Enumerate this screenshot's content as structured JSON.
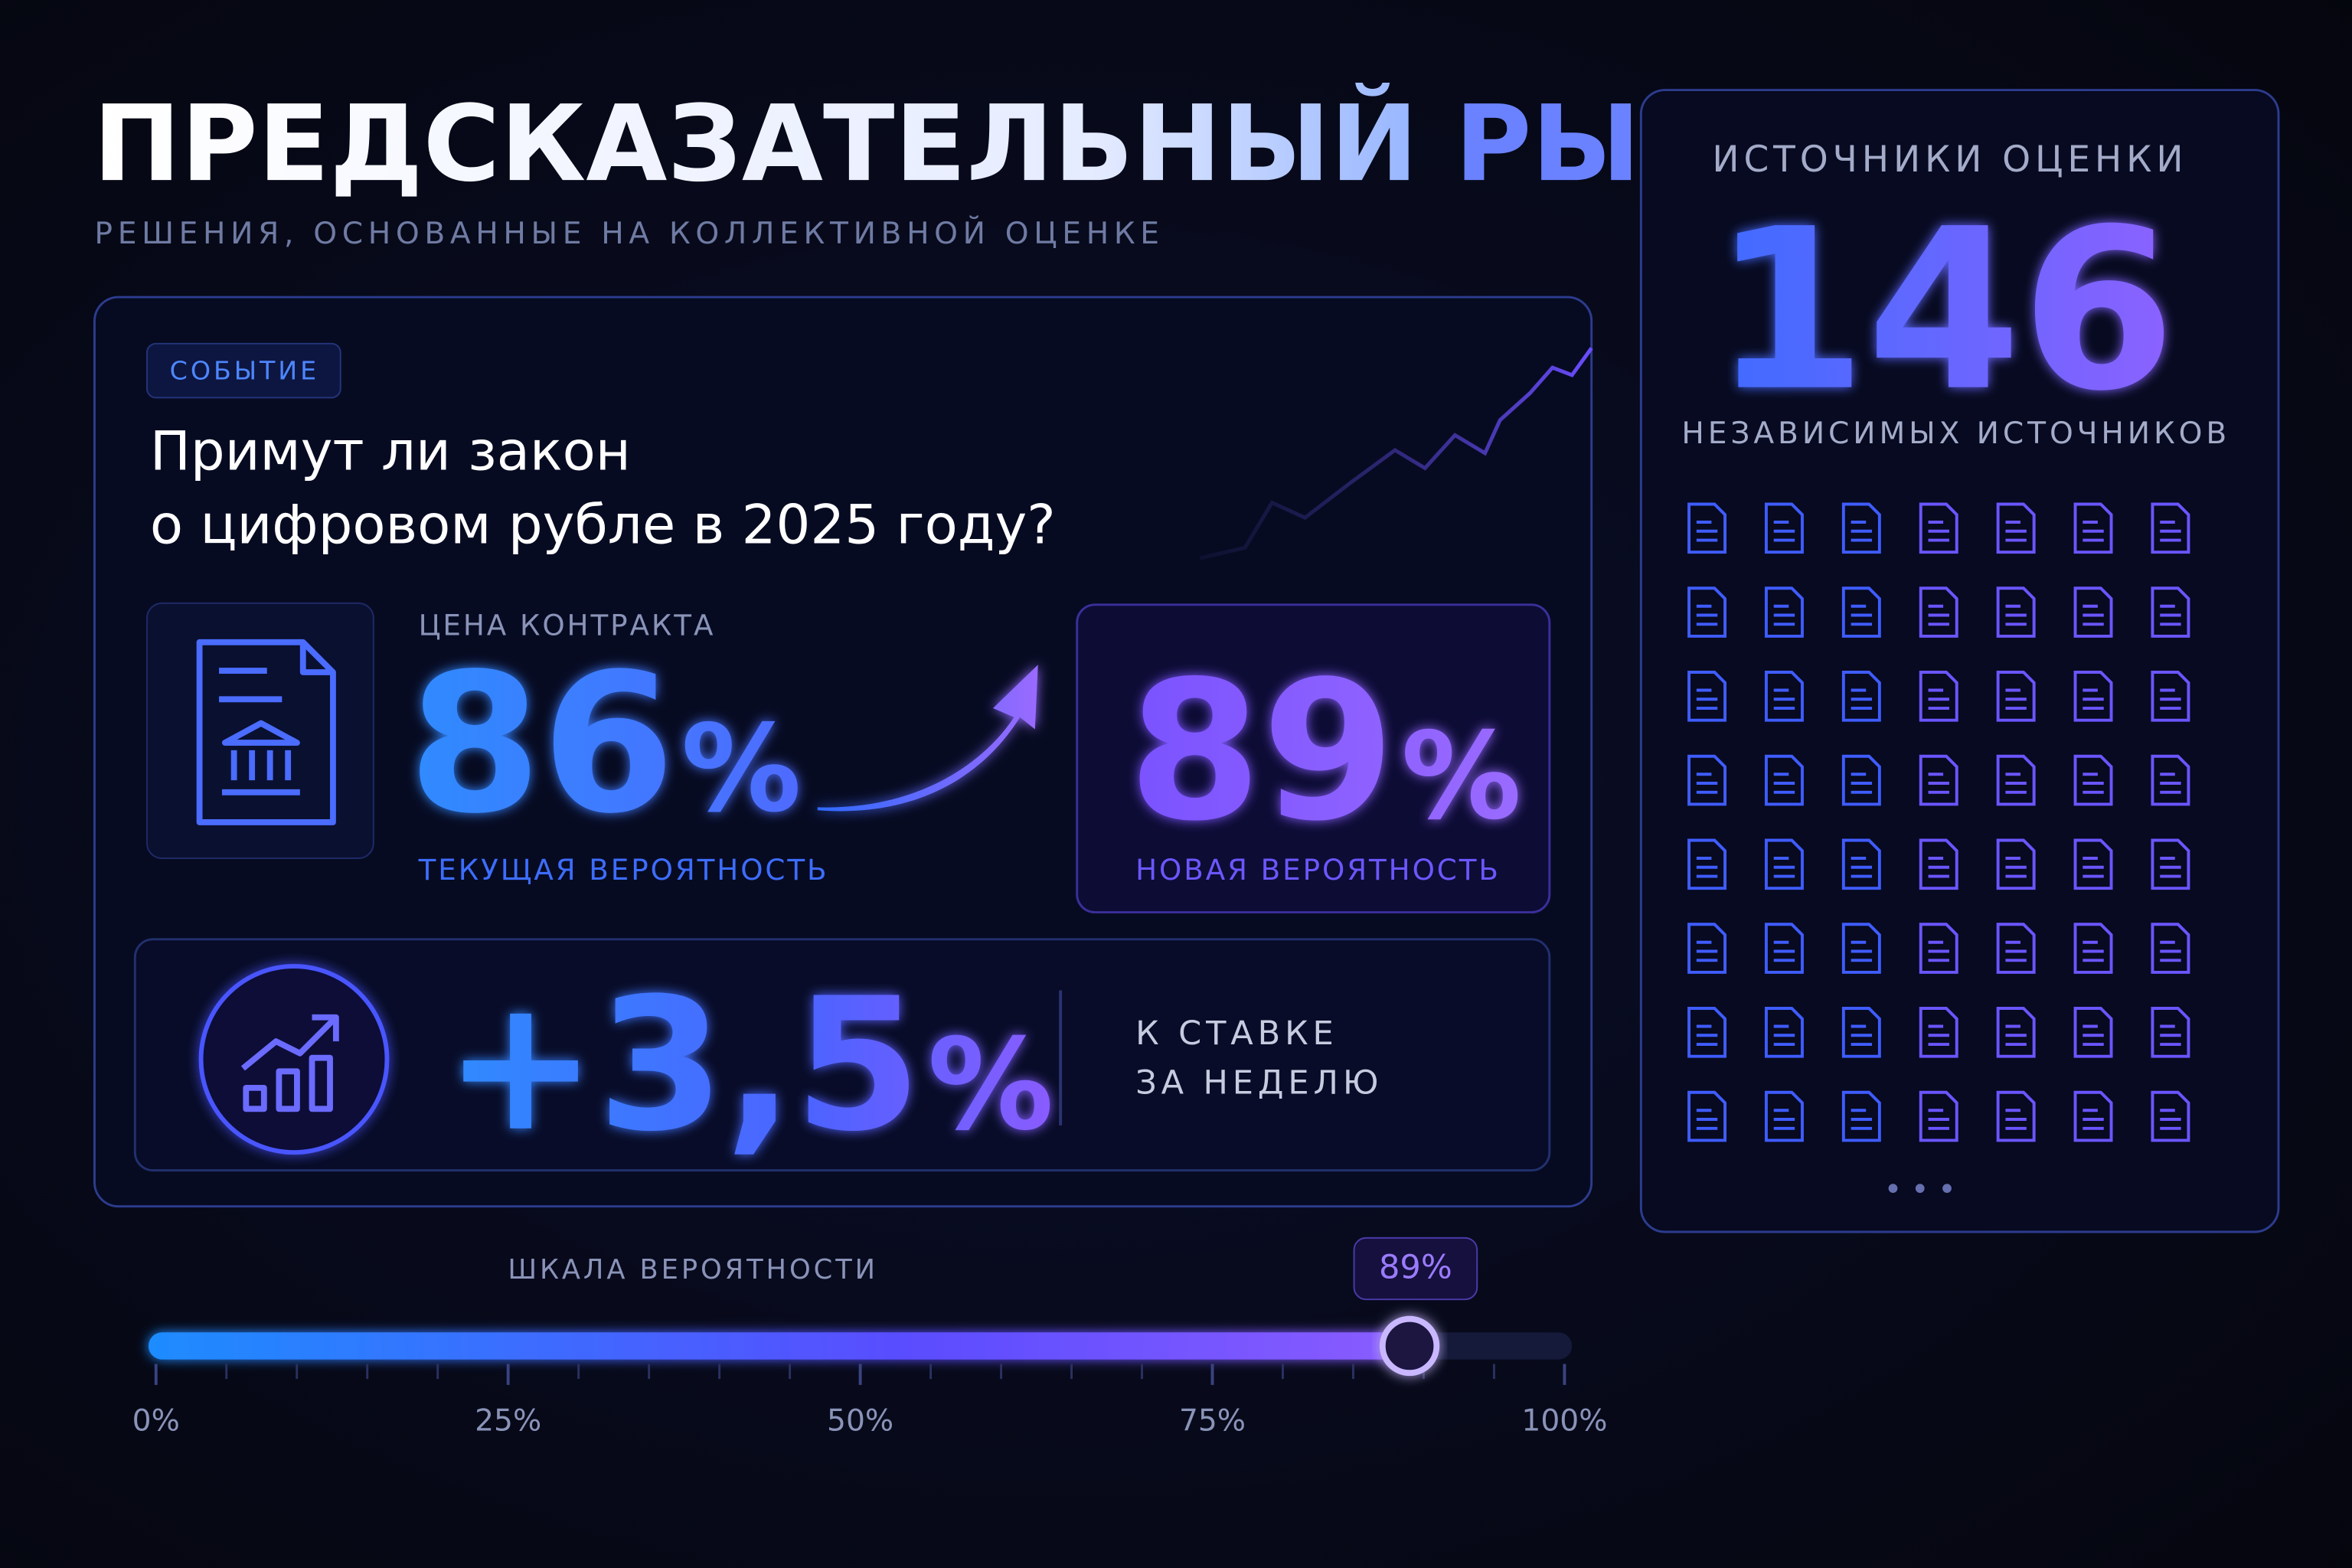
{
  "header": {
    "title_main": "ПРЕДСКАЗАТЕЛЬНЫЙ",
    "title_accent": "РЫНОК",
    "subtitle": "РЕШЕНИЯ, ОСНОВАННЫЕ НА КОЛЛЕКТИВНОЙ ОЦЕНКЕ"
  },
  "event": {
    "badge": "СОБЫТИЕ",
    "question": [
      "Примут ли закон",
      "о цифровом рубле в 2025 году?"
    ],
    "price_label": "ЦЕНА КОНТРАКТА",
    "current": {
      "value": "86",
      "unit": "%",
      "label": "ТЕКУЩАЯ ВЕРОЯТНОСТЬ"
    },
    "new": {
      "value": "89",
      "unit": "%",
      "label": "НОВАЯ ВЕРОЯТНОСТЬ"
    },
    "change": {
      "value": "+3,5",
      "unit": "%",
      "label": [
        "К СТАВКЕ",
        "ЗА НЕДЕЛЮ"
      ]
    }
  },
  "sources": {
    "title": "ИСТОЧНИКИ ОЦЕНКИ",
    "count": "146",
    "caption": "НЕЗАВИСИМЫХ ИСТОЧНИКОВ"
  },
  "scale": {
    "label": "ШКАЛА ВЕРОЯТНОСТИ",
    "marker": {
      "value": 89,
      "label": "89%"
    },
    "range": [
      0,
      100
    ],
    "ticks": [
      {
        "value": 0,
        "label": "0%"
      },
      {
        "value": 25,
        "label": "25%"
      },
      {
        "value": 50,
        "label": "50%"
      },
      {
        "value": 75,
        "label": "75%"
      },
      {
        "value": 100,
        "label": "100%"
      }
    ]
  }
}
